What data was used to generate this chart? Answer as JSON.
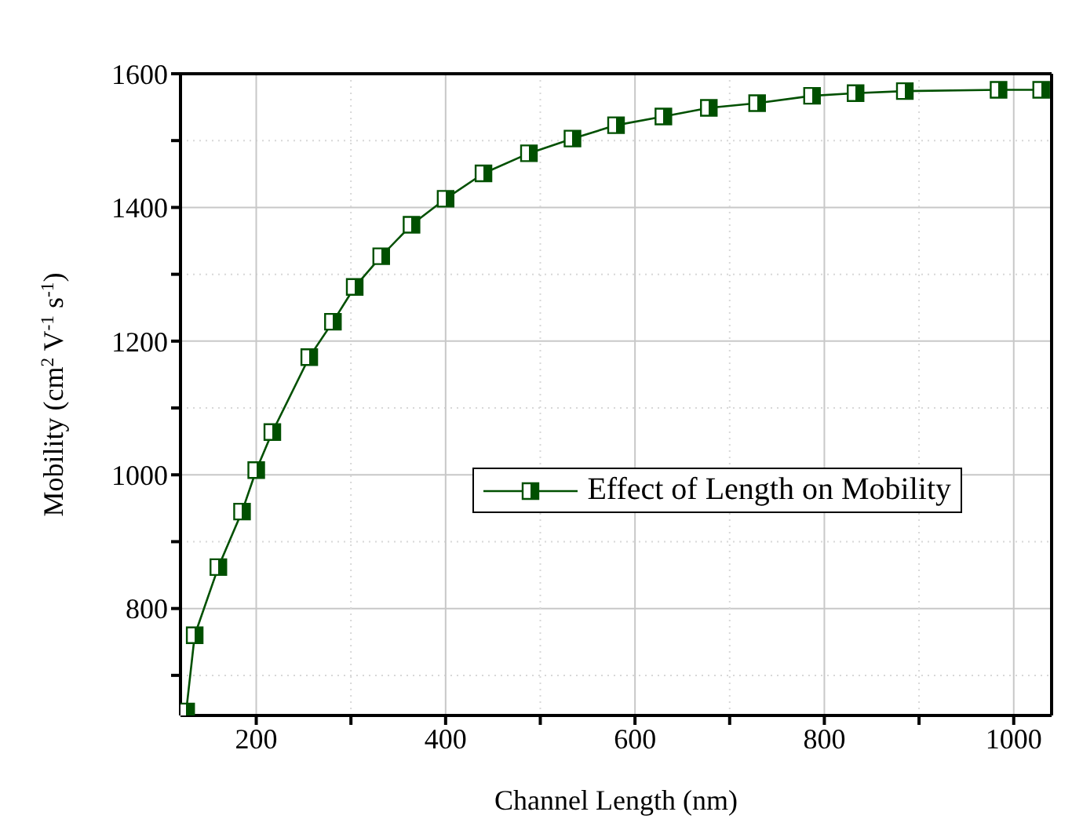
{
  "chart_data": {
    "type": "line",
    "xlabel": "Channel Length (nm)",
    "ylabel": "Mobility (cm$^{2}$ V$^{-1}$ s$^{-1}$)",
    "xlim": [
      120,
      1040
    ],
    "ylim": [
      640,
      1600
    ],
    "xticks": [
      200,
      {
        "value": 300,
        "label": null
      },
      400,
      {
        "value": 500,
        "label": null
      },
      600,
      {
        "value": 700,
        "label": null
      },
      800,
      {
        "value": 900,
        "label": null
      },
      1000
    ],
    "yticks": [
      {
        "value": 700,
        "label": null
      },
      800,
      {
        "value": 900,
        "label": null
      },
      1000,
      {
        "value": 1100,
        "label": null
      },
      1200,
      {
        "value": 1300,
        "label": null
      },
      1400,
      {
        "value": 1500,
        "label": null
      },
      1600
    ],
    "grid": true,
    "legend": "right",
    "marker": "square",
    "line_style": "solid",
    "series": [
      {
        "name": "Effect of Length on Mobility",
        "color": "#005000",
        "x": [
          126,
          135,
          160,
          185,
          200,
          217,
          256,
          281,
          304,
          332,
          364,
          400,
          440,
          488,
          534,
          580,
          630,
          678,
          729,
          787,
          833,
          885,
          984,
          1029
        ],
        "values": [
          646,
          760,
          862,
          945,
          1007,
          1064,
          1176,
          1229,
          1281,
          1327,
          1374,
          1413,
          1451,
          1481,
          1503,
          1523,
          1536,
          1549,
          1556,
          1567,
          1571,
          1574,
          1576,
          1576
        ]
      }
    ]
  }
}
